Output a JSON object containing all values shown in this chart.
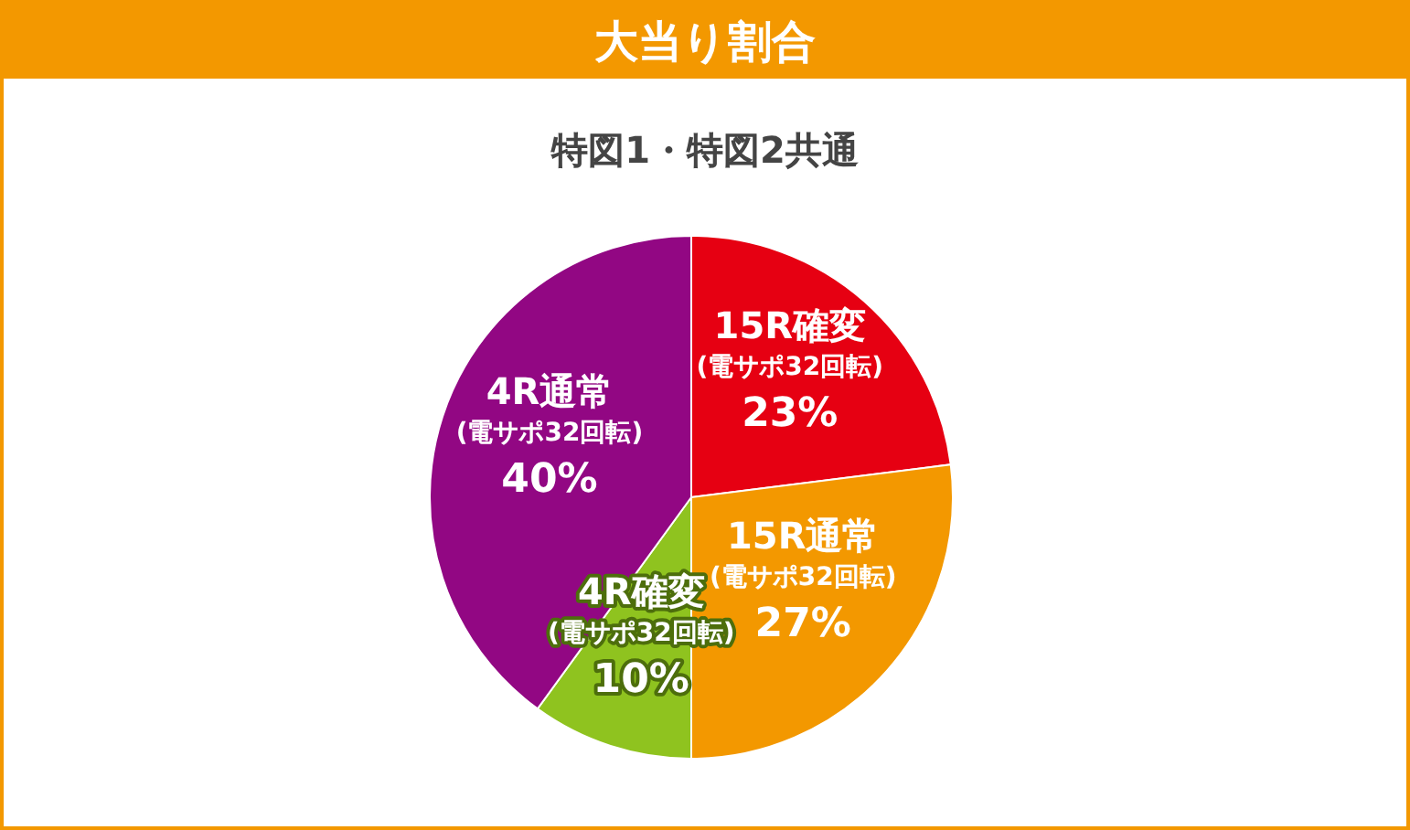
{
  "chart_data": {
    "type": "pie",
    "title": "大当り割合",
    "subtitle": "特図1・特図2共通",
    "categories": [
      "15R確変\n(電サポ32回転)",
      "15R通常\n(電サポ32回転)",
      "4R確変\n(電サポ32回転)",
      "4R通常\n(電サポ32回転)"
    ],
    "values": [
      23,
      27,
      10,
      40
    ],
    "colors": [
      "#e60012",
      "#f39800",
      "#8fc31f",
      "#920783"
    ],
    "value_labels": [
      "23%",
      "27%",
      "10%",
      "40%"
    ]
  }
}
